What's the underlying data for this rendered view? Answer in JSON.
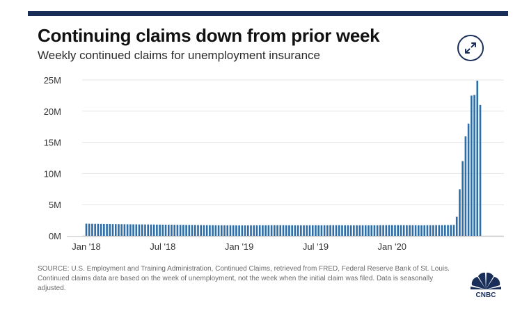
{
  "header": {
    "title": "Continuing claims down from prior week",
    "subtitle": "Weekly continued claims for unemployment insurance"
  },
  "footer": {
    "source": "SOURCE: U.S. Employment and Training Administration, Continued Claims, retrieved from FRED, Federal Reserve Bank of St. Louis. Continued claims data are based on the week of unemployment, not the week when the initial claim was filed. Data is seasonally adjusted.",
    "logo_text": "CNBC"
  },
  "icons": {
    "expand": "expand-arrows-icon",
    "logo": "cnbc-peacock-logo"
  },
  "colors": {
    "bar": "#2c6da8",
    "accent": "#1a2e5a",
    "grid": "#e6e6e6"
  },
  "chart_data": {
    "type": "bar",
    "title": "Continuing claims down from prior week",
    "subtitle": "Weekly continued claims for unemployment insurance",
    "xlabel": "",
    "ylabel": "",
    "x_tick_labels": [
      "Jan '18",
      "Jul '18",
      "Jan '19",
      "Jul '19",
      "Jan '20"
    ],
    "y_tick_labels": [
      "0M",
      "5M",
      "10M",
      "15M",
      "20M",
      "25M"
    ],
    "y_ticks": [
      0,
      5,
      10,
      15,
      20,
      25
    ],
    "ylim": [
      0,
      25
    ],
    "grid": true,
    "legend": "none",
    "x_ticks": [
      "2018-01-06",
      "2018-07-07",
      "2019-01-05",
      "2019-07-06",
      "2020-01-04"
    ],
    "series": [
      {
        "dates_start": "2018-01-06",
        "interval_days": 7,
        "unit": "millions",
        "values": [
          1.95,
          1.94,
          1.93,
          1.92,
          1.92,
          1.91,
          1.9,
          1.9,
          1.89,
          1.88,
          1.88,
          1.87,
          1.87,
          1.86,
          1.85,
          1.85,
          1.84,
          1.84,
          1.83,
          1.83,
          1.82,
          1.82,
          1.81,
          1.81,
          1.8,
          1.8,
          1.79,
          1.79,
          1.78,
          1.78,
          1.77,
          1.77,
          1.76,
          1.76,
          1.75,
          1.75,
          1.74,
          1.74,
          1.73,
          1.73,
          1.72,
          1.72,
          1.71,
          1.71,
          1.7,
          1.7,
          1.7,
          1.69,
          1.69,
          1.69,
          1.69,
          1.68,
          1.68,
          1.68,
          1.68,
          1.68,
          1.69,
          1.69,
          1.69,
          1.7,
          1.7,
          1.7,
          1.71,
          1.71,
          1.71,
          1.71,
          1.71,
          1.71,
          1.7,
          1.7,
          1.7,
          1.69,
          1.69,
          1.69,
          1.69,
          1.69,
          1.69,
          1.7,
          1.7,
          1.7,
          1.7,
          1.7,
          1.7,
          1.71,
          1.71,
          1.71,
          1.71,
          1.7,
          1.7,
          1.7,
          1.69,
          1.69,
          1.69,
          1.69,
          1.69,
          1.69,
          1.69,
          1.7,
          1.7,
          1.7,
          1.71,
          1.72,
          1.72,
          1.73,
          1.72,
          1.72,
          1.72,
          1.72,
          1.71,
          1.71,
          1.71,
          1.71,
          1.7,
          1.7,
          1.7,
          1.7,
          1.71,
          1.71,
          1.71,
          1.72,
          1.72,
          1.72,
          1.73,
          1.73,
          1.74,
          1.75,
          3.06,
          7.45,
          11.98,
          15.95,
          18.0,
          22.5,
          22.6,
          24.9,
          21.0
        ]
      }
    ]
  }
}
